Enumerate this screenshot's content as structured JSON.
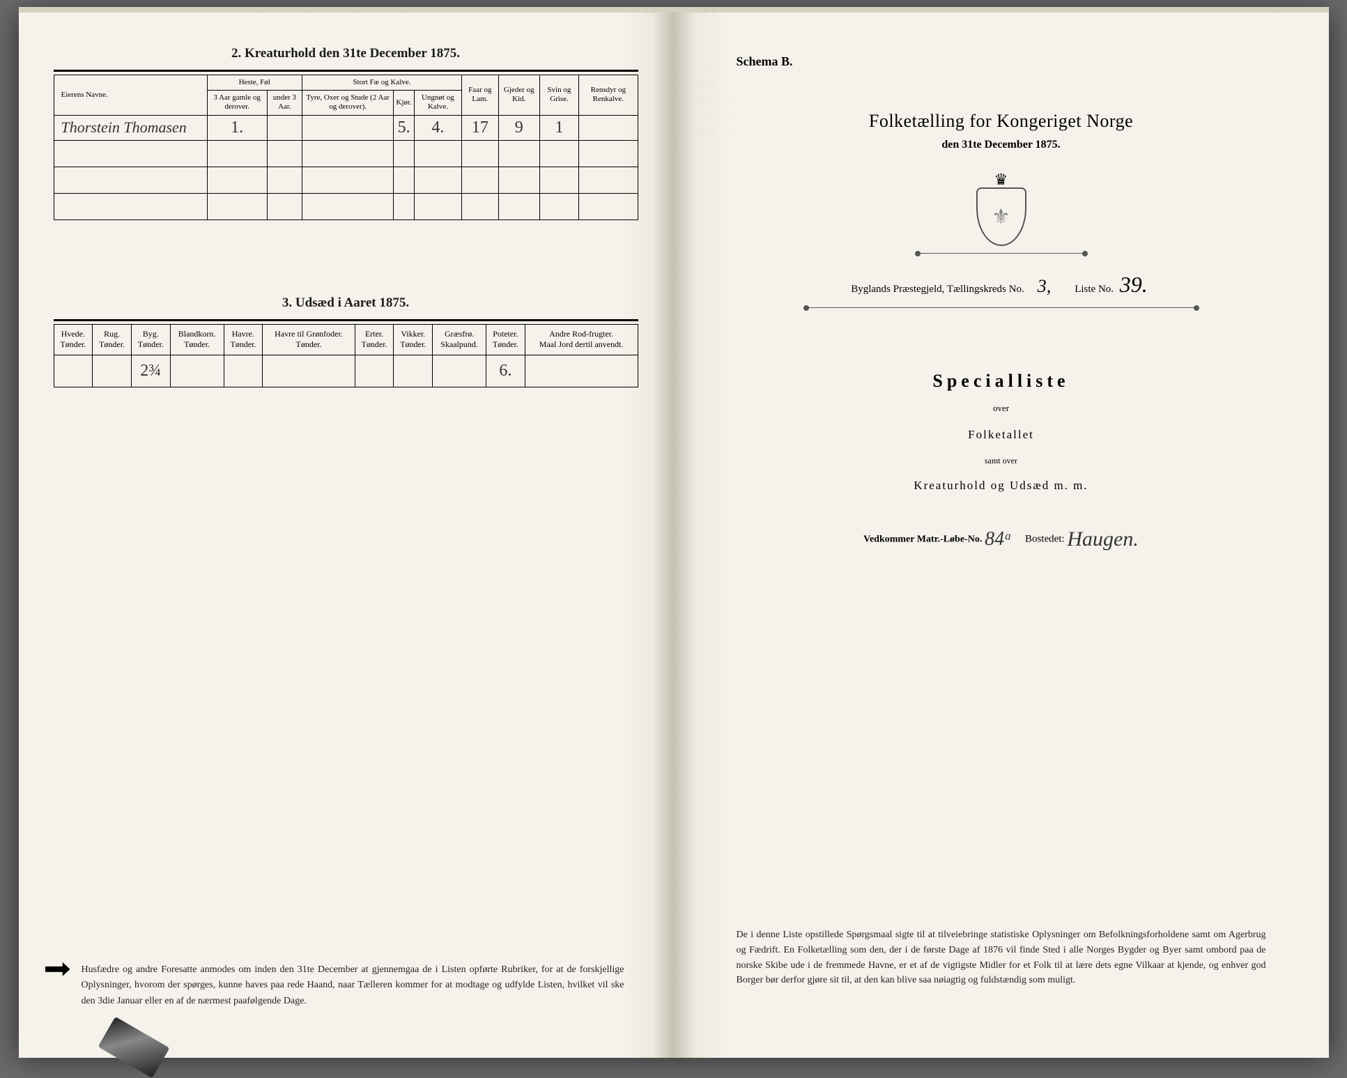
{
  "left": {
    "section2_title": "2. Kreaturhold den 31te December 1875.",
    "table2": {
      "owner_header": "Eierens Navne.",
      "groups": [
        {
          "label": "Heste, Føl",
          "cols": [
            "3 Aar gamle og derover.",
            "under 3 Aar."
          ]
        },
        {
          "label": "Stort Fæ og Kalve.",
          "cols": [
            "Tyre, Oxer og Stude (2 Aar og derover).",
            "Kjør.",
            "Ungnøt og Kalve."
          ]
        },
        {
          "label": "Faar og Lam."
        },
        {
          "label": "Gjeder og Kid."
        },
        {
          "label": "Svin og Grise."
        },
        {
          "label": "Rensdyr og Renkalve."
        }
      ],
      "row": {
        "owner": "Thorstein Thomasen",
        "heste_3up": "1.",
        "heste_u3": "",
        "oxer": "",
        "kjor": "5.",
        "ung": "4.",
        "faar": "17",
        "gjeder": "9",
        "svin": "1",
        "rens": ""
      }
    },
    "section3_title": "3. Udsæd i Aaret 1875.",
    "table3": {
      "cols": [
        "Hvede.\nTønder.",
        "Rug.\nTønder.",
        "Byg.\nTønder.",
        "Blandkorn.\nTønder.",
        "Havre.\nTønder.",
        "Havre til Grønfoder.\nTønder.",
        "Erter.\nTønder.",
        "Vikker.\nTønder.",
        "Græsfrø.\nSkaalpund.",
        "Poteter.\nTønder.",
        "Andre Rod-frugter.\nMaal Jord dertil anvendt."
      ],
      "values": [
        "",
        "",
        "2¾",
        "",
        "",
        "",
        "",
        "",
        "",
        "6.",
        ""
      ]
    },
    "notice": "Husfædre og andre Foresatte anmodes om inden den 31te December at gjennemgaa de i Listen opførte Rubriker, for at de forskjellige Oplysninger, hvorom der spørges, kunne haves paa rede Haand, naar Tælleren kommer for at modtage og udfylde Listen, hvilket vil ske den 3die Januar eller en af de nærmest paafølgende Dage."
  },
  "right": {
    "schema": "Schema B.",
    "title": "Folketælling for Kongeriget Norge",
    "subtitle": "den 31te December 1875.",
    "kreds": {
      "prefix": "Byglands Præstegjeld, Tællingskreds No.",
      "kreds_no": "3,",
      "liste_label": "Liste No.",
      "liste_no": "39."
    },
    "specialliste": "Specialliste",
    "over": "over",
    "folketallet": "Folketallet",
    "samt": "samt over",
    "kreatur": "Kreaturhold og Udsæd m. m.",
    "bostedet": {
      "bold": "Vedkommer Matr.-Løbe-No.",
      "no": "84ᵃ",
      "label": "Bostedet:",
      "place": "Haugen."
    },
    "footnote": "De i denne Liste opstillede Spørgsmaal sigte til at tilveiebringe statistiske Oplysninger om Befolkningsforholdene samt om Agerbrug og Fædrift. En Folketælling som den, der i de første Dage af 1876 vil finde Sted i alle Norges Bygder og Byer samt ombord paa de norske Skibe ude i de fremmede Havne, er et af de vigtigste Midler for et Folk til at lære dets egne Vilkaar at kjende, og enhver god Borger bør derfor gjøre sit til, at den kan blive saa nøiagtig og fuldstændig som muligt."
  }
}
